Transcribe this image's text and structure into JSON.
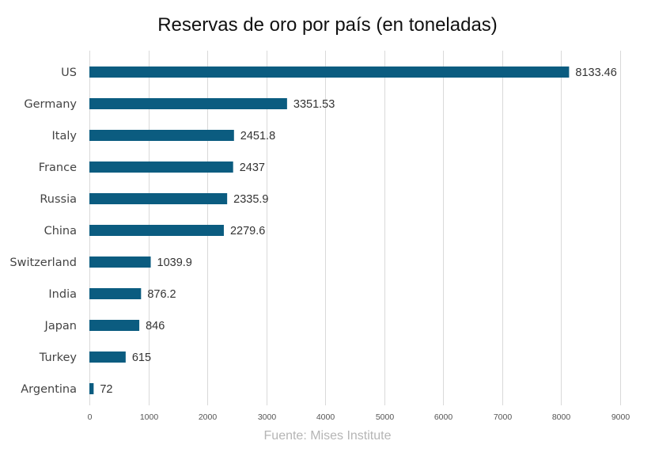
{
  "chart_data": {
    "type": "bar",
    "orientation": "horizontal",
    "title": "Reservas de oro por país (en toneladas)",
    "xlabel": "",
    "ylabel": "",
    "categories": [
      "US",
      "Germany",
      "Italy",
      "France",
      "Russia",
      "China",
      "Switzerland",
      "India",
      "Japan",
      "Turkey",
      "Argentina"
    ],
    "values": [
      8133.46,
      3351.53,
      2451.8,
      2437,
      2335.9,
      2279.6,
      1039.9,
      876.2,
      846,
      615,
      72
    ],
    "value_labels": [
      "8133.46",
      "3351.53",
      "2451.8",
      "2437",
      "2335.9",
      "2279.6",
      "1039.9",
      "876.2",
      "846",
      "615",
      "72"
    ],
    "xlim": [
      0,
      9000
    ],
    "xticks": [
      0,
      1000,
      2000,
      3000,
      4000,
      5000,
      6000,
      7000,
      8000,
      9000
    ],
    "grid": "vertical",
    "bar_color": "#0b5c80",
    "source": "Fuente: Mises Institute"
  }
}
